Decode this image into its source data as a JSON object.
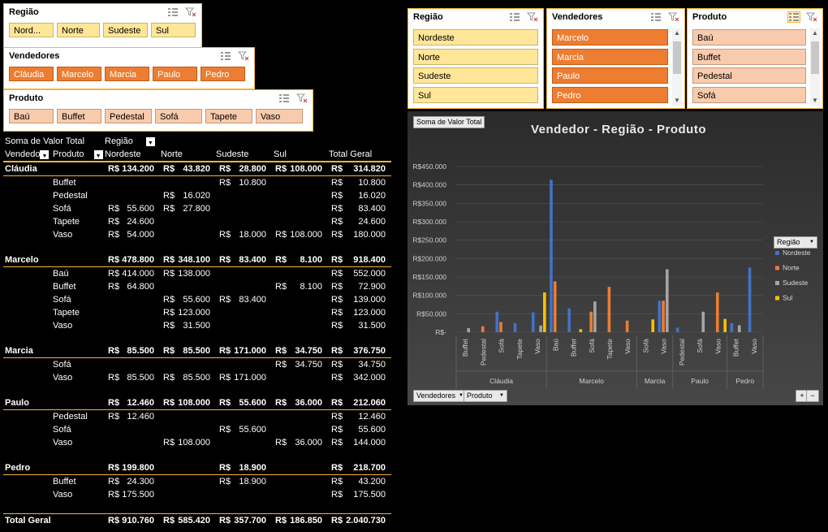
{
  "slicers_left": [
    {
      "title": "Região",
      "style": "yellow",
      "items": [
        "Nord...",
        "Norte",
        "Sudeste",
        "Sul"
      ]
    },
    {
      "title": "Vendedores",
      "style": "orange",
      "items": [
        "Cláudia",
        "Marcelo",
        "Marcia",
        "Paulo",
        "Pedro"
      ]
    },
    {
      "title": "Produto",
      "style": "salmon",
      "items": [
        "Baú",
        "Buffet",
        "Pedestal",
        "Sofá",
        "Tapete",
        "Vaso"
      ]
    }
  ],
  "slicers_right": [
    {
      "title": "Região",
      "style": "yellow",
      "items": [
        "Nordeste",
        "Norte",
        "Sudeste",
        "Sul"
      ]
    },
    {
      "title": "Vendedores",
      "style": "orange",
      "items": [
        "Marcelo",
        "Marcia",
        "Paulo",
        "Pedro"
      ]
    },
    {
      "title": "Produto",
      "style": "salmon",
      "items": [
        "Baú",
        "Buffet",
        "Pedestal",
        "Sofá"
      ]
    }
  ],
  "pivot": {
    "value_label": "Soma de Valor Total",
    "col_field": "Região",
    "row_field1": "Vendedo",
    "row_field2": "Produto",
    "col_headers": [
      "Nordeste",
      "Norte",
      "Sudeste",
      "Sul",
      "Total Geral"
    ],
    "currency": "R$",
    "groups": [
      {
        "name": "Cláudia",
        "totals": [
          "134.200",
          "43.820",
          "28.800",
          "108.000",
          "314.820"
        ],
        "rows": [
          {
            "name": "Buffet",
            "vals": [
              "",
              "",
              "10.800",
              "",
              "10.800"
            ]
          },
          {
            "name": "Pedestal",
            "vals": [
              "",
              "16.020",
              "",
              "",
              "16.020"
            ]
          },
          {
            "name": "Sofá",
            "vals": [
              "55.600",
              "27.800",
              "",
              "",
              "83.400"
            ]
          },
          {
            "name": "Tapete",
            "vals": [
              "24.600",
              "",
              "",
              "",
              "24.600"
            ]
          },
          {
            "name": "Vaso",
            "vals": [
              "54.000",
              "",
              "18.000",
              "108.000",
              "180.000"
            ]
          }
        ]
      },
      {
        "name": "Marcelo",
        "totals": [
          "478.800",
          "348.100",
          "83.400",
          "8.100",
          "918.400"
        ],
        "rows": [
          {
            "name": "Baú",
            "vals": [
              "414.000",
              "138.000",
              "",
              "",
              "552.000"
            ]
          },
          {
            "name": "Buffet",
            "vals": [
              "64.800",
              "",
              "",
              "8.100",
              "72.900"
            ]
          },
          {
            "name": "Sofá",
            "vals": [
              "",
              "55.600",
              "83.400",
              "",
              "139.000"
            ]
          },
          {
            "name": "Tapete",
            "vals": [
              "",
              "123.000",
              "",
              "",
              "123.000"
            ]
          },
          {
            "name": "Vaso",
            "vals": [
              "",
              "31.500",
              "",
              "",
              "31.500"
            ]
          }
        ]
      },
      {
        "name": "Marcia",
        "totals": [
          "85.500",
          "85.500",
          "171.000",
          "34.750",
          "376.750"
        ],
        "rows": [
          {
            "name": "Sofá",
            "vals": [
              "",
              "",
              "",
              "34.750",
              "34.750"
            ]
          },
          {
            "name": "Vaso",
            "vals": [
              "85.500",
              "85.500",
              "171.000",
              "",
              "342.000"
            ]
          }
        ]
      },
      {
        "name": "Paulo",
        "totals": [
          "12.460",
          "108.000",
          "55.600",
          "36.000",
          "212.060"
        ],
        "rows": [
          {
            "name": "Pedestal",
            "vals": [
              "12.460",
              "",
              "",
              "",
              "12.460"
            ]
          },
          {
            "name": "Sofá",
            "vals": [
              "",
              "",
              "55.600",
              "",
              "55.600"
            ]
          },
          {
            "name": "Vaso",
            "vals": [
              "",
              "108.000",
              "",
              "36.000",
              "144.000"
            ]
          }
        ]
      },
      {
        "name": "Pedro",
        "totals": [
          "199.800",
          "",
          "18.900",
          "",
          "218.700"
        ],
        "rows": [
          {
            "name": "Buffet",
            "vals": [
              "24.300",
              "",
              "18.900",
              "",
              "43.200"
            ]
          },
          {
            "name": "Vaso",
            "vals": [
              "175.500",
              "",
              "",
              "",
              "175.500"
            ]
          }
        ]
      }
    ],
    "grand_label": "Total Geral",
    "grand": [
      "910.760",
      "585.420",
      "357.700",
      "186.850",
      "2.040.730"
    ]
  },
  "chart": {
    "field_button": "Soma de Valor Total",
    "legend_title": "Região",
    "axis_buttons": [
      "Vendedores",
      "Produto"
    ],
    "zoom_plus": "+",
    "zoom_minus": "−"
  },
  "chart_data": {
    "type": "bar",
    "title": "Vendedor - Região - Produto",
    "yticks": [
      "R$-",
      "R$50.000",
      "R$100.000",
      "R$150.000",
      "R$200.000",
      "R$250.000",
      "R$300.000",
      "R$350.000",
      "R$400.000",
      "R$450.000"
    ],
    "ylim": [
      0,
      450000
    ],
    "grid": true,
    "legend_position": "right",
    "series": [
      {
        "name": "Nordeste",
        "color": "#4472c4"
      },
      {
        "name": "Norte",
        "color": "#ed7d31"
      },
      {
        "name": "Sudeste",
        "color": "#a5a5a5"
      },
      {
        "name": "Sul",
        "color": "#ffc000"
      }
    ],
    "groups": [
      {
        "name": "Cláudia",
        "categories": [
          {
            "label": "Buffet",
            "values": [
              0,
              0,
              10800,
              0
            ]
          },
          {
            "label": "Pedestal",
            "values": [
              0,
              16020,
              0,
              0
            ]
          },
          {
            "label": "Sofá",
            "values": [
              55600,
              27800,
              0,
              0
            ]
          },
          {
            "label": "Tapete",
            "values": [
              24600,
              0,
              0,
              0
            ]
          },
          {
            "label": "Vaso",
            "values": [
              54000,
              0,
              18000,
              108000
            ]
          }
        ]
      },
      {
        "name": "Marcelo",
        "categories": [
          {
            "label": "Baú",
            "values": [
              414000,
              138000,
              0,
              0
            ]
          },
          {
            "label": "Buffet",
            "values": [
              64800,
              0,
              0,
              8100
            ]
          },
          {
            "label": "Sofá",
            "values": [
              0,
              55600,
              83400,
              0
            ]
          },
          {
            "label": "Tapete",
            "values": [
              0,
              123000,
              0,
              0
            ]
          },
          {
            "label": "Vaso",
            "values": [
              0,
              31500,
              0,
              0
            ]
          }
        ]
      },
      {
        "name": "Marcia",
        "categories": [
          {
            "label": "Sofá",
            "values": [
              0,
              0,
              0,
              34750
            ]
          },
          {
            "label": "Vaso",
            "values": [
              85500,
              85500,
              171000,
              0
            ]
          }
        ]
      },
      {
        "name": "Paulo",
        "categories": [
          {
            "label": "Pedestal",
            "values": [
              12460,
              0,
              0,
              0
            ]
          },
          {
            "label": "Sofá",
            "values": [
              0,
              0,
              55600,
              0
            ]
          },
          {
            "label": "Vaso",
            "values": [
              0,
              108000,
              0,
              36000
            ]
          }
        ]
      },
      {
        "name": "Pedro",
        "categories": [
          {
            "label": "Buffet",
            "values": [
              24300,
              0,
              18900,
              0
            ]
          },
          {
            "label": "Vaso",
            "values": [
              175500,
              0,
              0,
              0
            ]
          }
        ]
      }
    ]
  }
}
